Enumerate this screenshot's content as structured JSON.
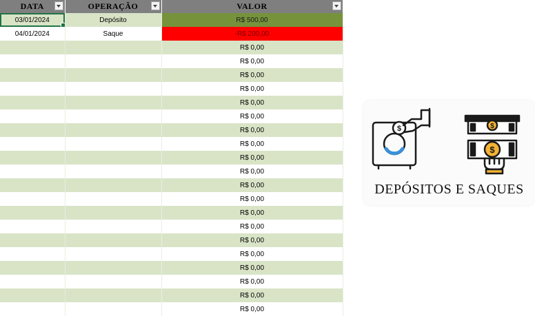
{
  "sheet": {
    "headers": {
      "data": "DATA",
      "operacao": "OPERAÇÃO",
      "valor": "VALOR"
    },
    "rows": [
      {
        "data": "03/01/2024",
        "operacao": "Depósito",
        "valor": "R$ 500,00",
        "status": "deposit"
      },
      {
        "data": "04/01/2024",
        "operacao": "Saque",
        "valor": "-R$ 200,00",
        "status": "withdraw"
      },
      {
        "data": "",
        "operacao": "",
        "valor": "R$ 0,00"
      },
      {
        "data": "",
        "operacao": "",
        "valor": "R$ 0,00"
      },
      {
        "data": "",
        "operacao": "",
        "valor": "R$ 0,00"
      },
      {
        "data": "",
        "operacao": "",
        "valor": "R$ 0,00"
      },
      {
        "data": "",
        "operacao": "",
        "valor": "R$ 0,00"
      },
      {
        "data": "",
        "operacao": "",
        "valor": "R$ 0,00"
      },
      {
        "data": "",
        "operacao": "",
        "valor": "R$ 0,00"
      },
      {
        "data": "",
        "operacao": "",
        "valor": "R$ 0,00"
      },
      {
        "data": "",
        "operacao": "",
        "valor": "R$ 0,00"
      },
      {
        "data": "",
        "operacao": "",
        "valor": "R$ 0,00"
      },
      {
        "data": "",
        "operacao": "",
        "valor": "R$ 0,00"
      },
      {
        "data": "",
        "operacao": "",
        "valor": "R$ 0,00"
      },
      {
        "data": "",
        "operacao": "",
        "valor": "R$ 0,00"
      },
      {
        "data": "",
        "operacao": "",
        "valor": "R$ 0,00"
      },
      {
        "data": "",
        "operacao": "",
        "valor": "R$ 0,00"
      },
      {
        "data": "",
        "operacao": "",
        "valor": "R$ 0,00"
      },
      {
        "data": "",
        "operacao": "",
        "valor": "R$ 0,00"
      },
      {
        "data": "",
        "operacao": "",
        "valor": "R$ 0,00"
      },
      {
        "data": "",
        "operacao": "",
        "valor": "R$ 0,00"
      },
      {
        "data": "",
        "operacao": "",
        "valor": "R$ 0,00"
      }
    ]
  },
  "colors": {
    "header_bg": "#7f7f7f",
    "band_green": "#d9e4c7",
    "deposit_green": "#76933c",
    "withdraw_red": "#ff0000",
    "icon_orange": "#f5b335",
    "icon_blue": "#3a8fd6"
  },
  "logo": {
    "title": "DEPÓSITOS E SAQUES",
    "icons": [
      "safe-deposit-icon",
      "cash-withdraw-icon"
    ]
  }
}
